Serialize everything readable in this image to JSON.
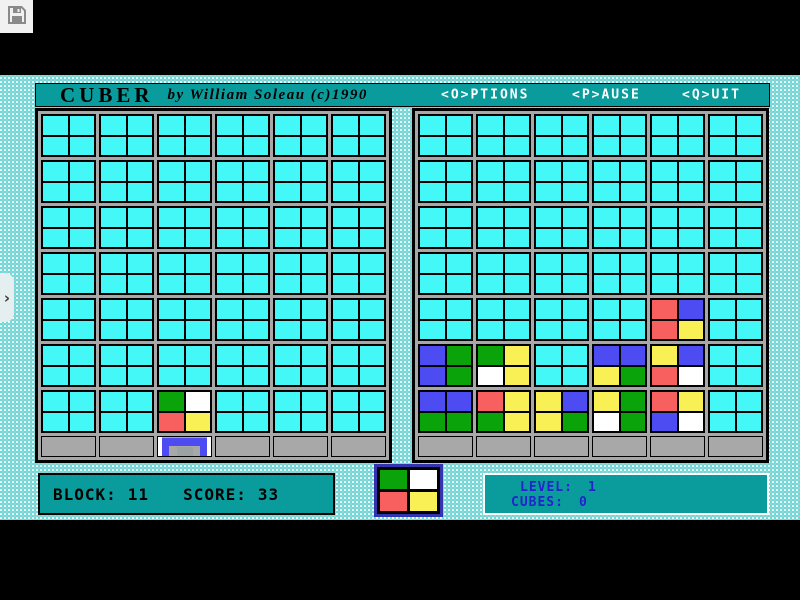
{
  "window": {
    "chevron": "›"
  },
  "title_bar": {
    "title": "CUBER",
    "byline": "by William Soleau (c)1990",
    "menu": [
      {
        "label": "<O>PTIONS"
      },
      {
        "label": "<P>AUSE"
      },
      {
        "label": "<Q>UIT"
      }
    ]
  },
  "status": {
    "block_label": "BLOCK:",
    "block_value": "11",
    "score_label": "SCORE:",
    "score_value": "33",
    "level_label": "LEVEL:",
    "level_value": "1",
    "cubes_label": "CUBES:",
    "cubes_value": "0"
  },
  "next_block": {
    "cells": [
      "green",
      "white",
      "red",
      "yellow"
    ]
  },
  "boards": {
    "big_cols": 6,
    "big_rows": 7,
    "left_pieces": [
      {
        "row": 6,
        "col": 2,
        "cells": [
          "green",
          "white",
          "red",
          "yellow"
        ]
      }
    ],
    "left_marker": {
      "col": 2,
      "type": "stand"
    },
    "right_pieces": [
      {
        "row": 4,
        "col": 4,
        "cells": [
          "red",
          "blue",
          "red",
          "yellow"
        ]
      },
      {
        "row": 5,
        "col": 0,
        "cells": [
          "blue",
          "green",
          "blue",
          "green"
        ]
      },
      {
        "row": 5,
        "col": 1,
        "cells": [
          "green",
          "yellow",
          "white",
          "yellow"
        ]
      },
      {
        "row": 5,
        "col": 3,
        "cells": [
          "blue",
          "blue",
          "yellow",
          "green"
        ]
      },
      {
        "row": 5,
        "col": 4,
        "cells": [
          "yellow",
          "blue",
          "red",
          "white"
        ]
      },
      {
        "row": 6,
        "col": 0,
        "cells": [
          "blue",
          "blue",
          "green",
          "green"
        ]
      },
      {
        "row": 6,
        "col": 1,
        "cells": [
          "red",
          "yellow",
          "green",
          "yellow"
        ]
      },
      {
        "row": 6,
        "col": 2,
        "cells": [
          "yellow",
          "blue",
          "yellow",
          "green"
        ]
      },
      {
        "row": 6,
        "col": 3,
        "cells": [
          "yellow",
          "green",
          "white",
          "green"
        ]
      },
      {
        "row": 6,
        "col": 4,
        "cells": [
          "red",
          "yellow",
          "blue",
          "white"
        ]
      }
    ]
  },
  "colors": {
    "field": "#45f8f8",
    "panel_teal": "#0a9c9c",
    "grid_gray": "#a8a8a8",
    "text_blue": "#2323cc",
    "preview_border": "#3434b0",
    "stand_blue": "#4c4cf2",
    "pieces": {
      "green": "#0aa30a",
      "red": "#f85f5f",
      "blue": "#4c4cf2",
      "yellow": "#f8f055",
      "white": "#ffffff"
    }
  }
}
